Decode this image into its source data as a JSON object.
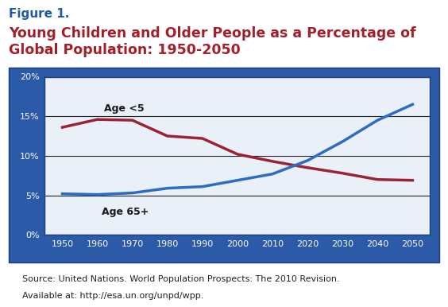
{
  "chart_data": {
    "type": "line",
    "title": "Figure 1.",
    "subtitle": "Young Children and Older People as a Percentage of Global Population: 1950-2050",
    "annotations": [
      "Source: United Nations. World Population Prospects: The 2010 Revision.",
      "Available at: http://esa.un.org/unpd/wpp."
    ],
    "x": [
      1950,
      1960,
      1970,
      1980,
      1990,
      2000,
      2010,
      2020,
      2030,
      2040,
      2050
    ],
    "series": [
      {
        "name": "Age <5",
        "color": "#9b2335",
        "values": [
          13.6,
          14.6,
          14.5,
          12.5,
          12.2,
          10.2,
          9.3,
          8.5,
          7.8,
          7.0,
          6.9
        ]
      },
      {
        "name": "Age 65+",
        "color": "#2e6bc6",
        "values": [
          5.2,
          5.1,
          5.3,
          5.9,
          6.1,
          6.9,
          7.7,
          9.4,
          11.8,
          14.5,
          16.5
        ]
      }
    ],
    "xlim": [
      1945,
      2055
    ],
    "xticks": [
      1950,
      1960,
      1970,
      1980,
      1990,
      2000,
      2010,
      2020,
      2030,
      2040,
      2050
    ],
    "ylim": [
      0,
      20
    ],
    "yticks": [
      {
        "value": 0,
        "label": "0%"
      },
      {
        "value": 5,
        "label": "5%"
      },
      {
        "value": 10,
        "label": "10%"
      },
      {
        "value": 15,
        "label": "15%"
      },
      {
        "value": 20,
        "label": "20%"
      }
    ],
    "grid": true
  }
}
